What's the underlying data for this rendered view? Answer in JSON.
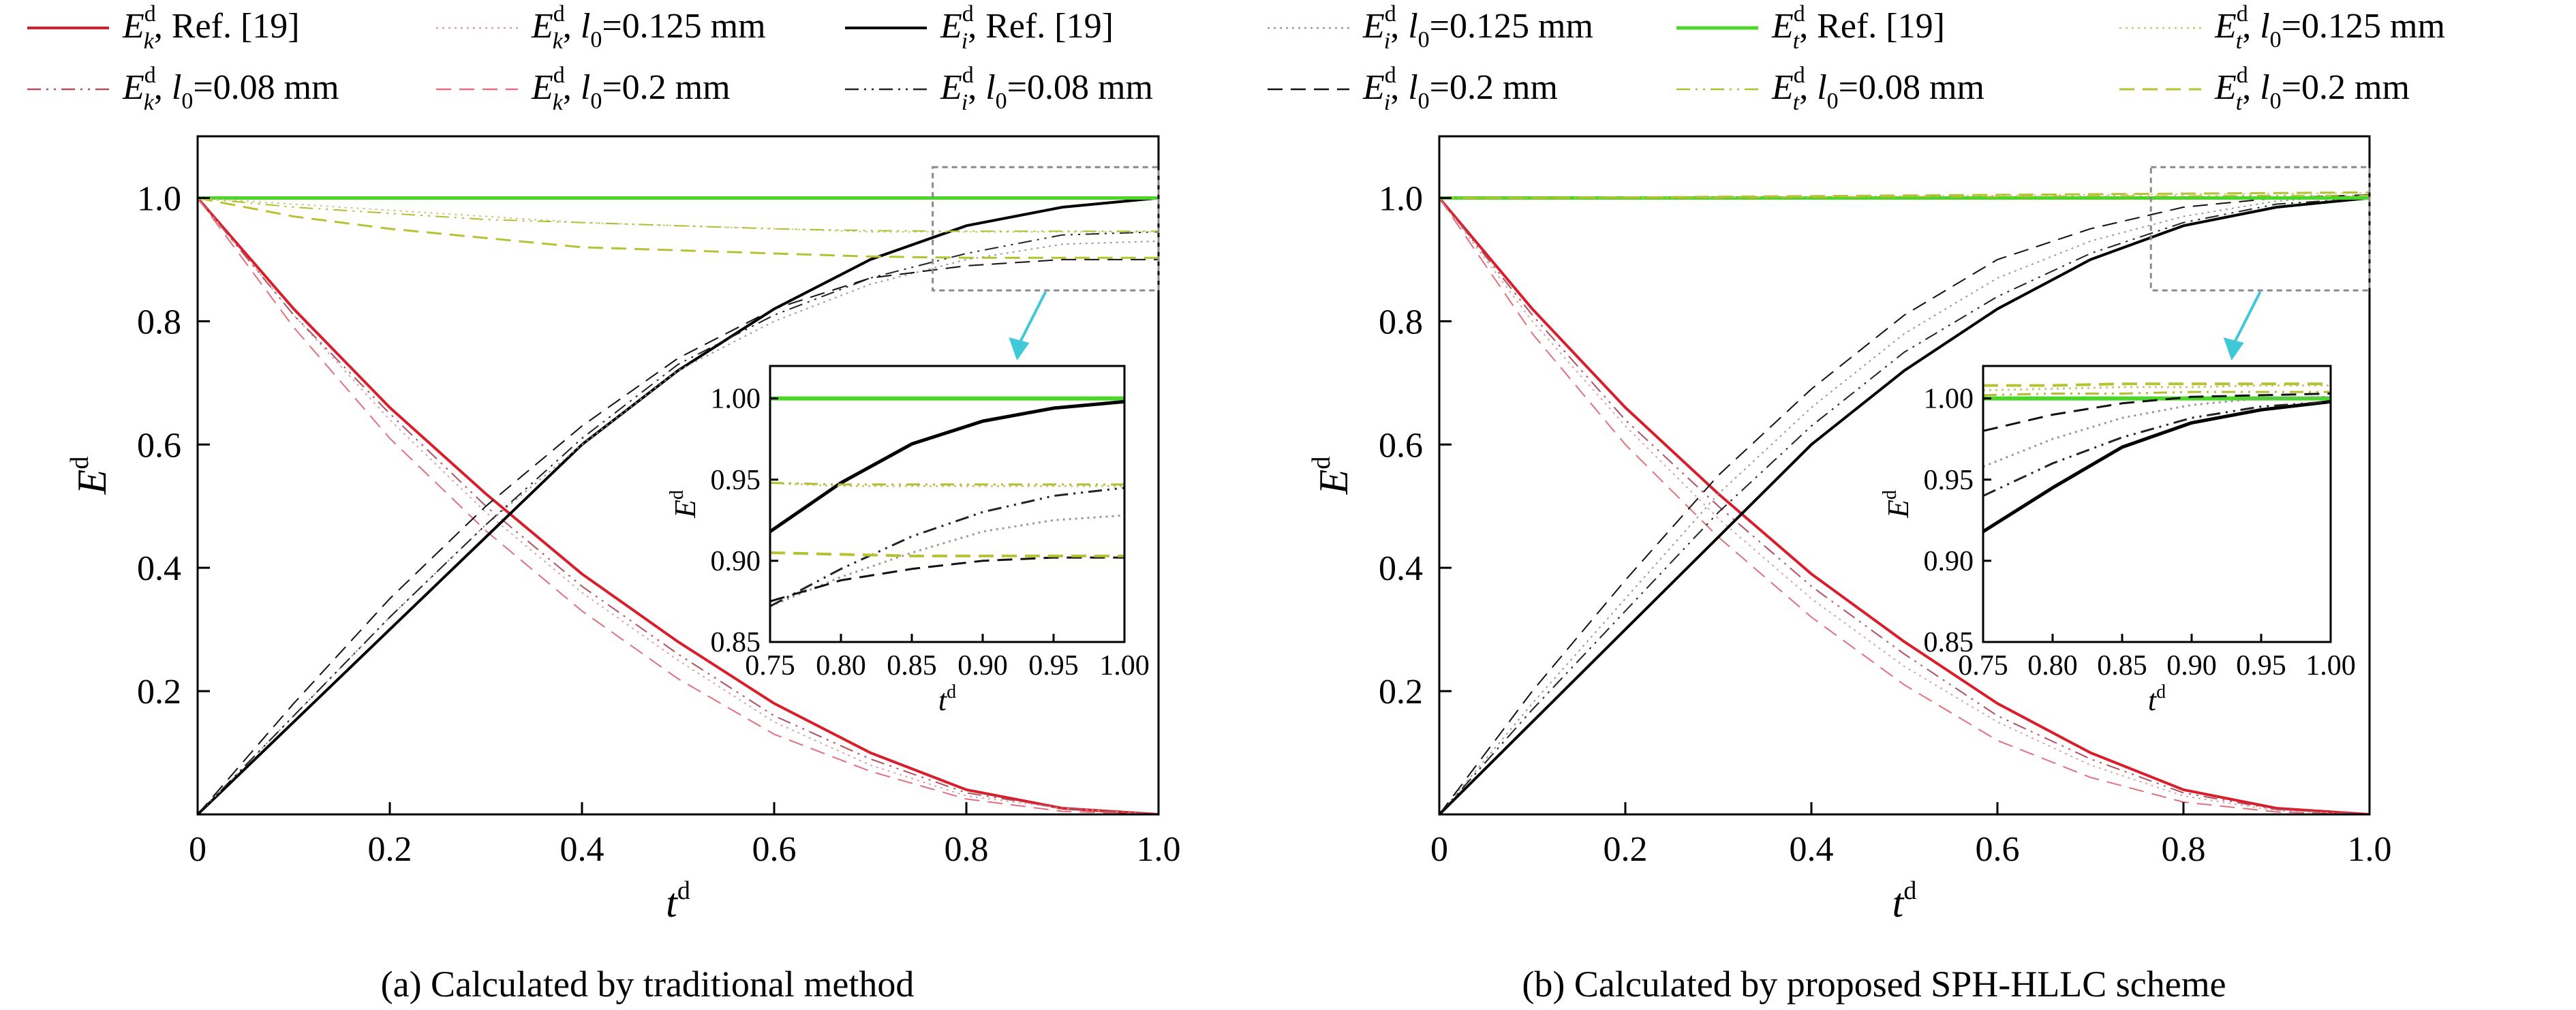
{
  "figure": {
    "captions": [
      "(a) Calculated by traditional method",
      "(b) Calculated by proposed SPH-HLLC scheme"
    ]
  },
  "legend": {
    "placement": "top",
    "entries": [
      {
        "sym": "E",
        "sub": "k",
        "sup": "d",
        "tail": ", Ref. [19]",
        "color": "#d81e2a",
        "dash": "solid",
        "width": 4
      },
      {
        "sym": "E",
        "sub": "k",
        "sup": "d",
        "tail": ", l",
        "tsub": "0",
        "tail2": "=0.125 mm",
        "color": "#d9a0a8",
        "dash": "dot",
        "width": 2
      },
      {
        "sym": "E",
        "sub": "i",
        "sup": "d",
        "tail": ", Ref. [19]",
        "color": "#000000",
        "dash": "solid",
        "width": 4
      },
      {
        "sym": "E",
        "sub": "i",
        "sup": "d",
        "tail": ", l",
        "tsub": "0",
        "tail2": "=0.125 mm",
        "color": "#9a9a9a",
        "dash": "dot",
        "width": 2
      },
      {
        "sym": "E",
        "sub": "t",
        "sup": "d",
        "tail": ", Ref. [19]",
        "color": "#4cd62a",
        "dash": "solid",
        "width": 5
      },
      {
        "sym": "E",
        "sub": "t",
        "sup": "d",
        "tail": ", l",
        "tsub": "0",
        "tail2": "=0.125 mm",
        "color": "#c2ca7a",
        "dash": "dot",
        "width": 2
      },
      {
        "sym": "E",
        "sub": "k",
        "sup": "d",
        "tail": ", l",
        "tsub": "0",
        "tail2": "=0.08 mm",
        "color": "#b0505e",
        "dash": "dashdotdot",
        "width": 2
      },
      {
        "sym": "E",
        "sub": "k",
        "sup": "d",
        "tail": ", l",
        "tsub": "0",
        "tail2": "=0.2 mm",
        "color": "#e0707e",
        "dash": "dash",
        "width": 2
      },
      {
        "sym": "E",
        "sub": "i",
        "sup": "d",
        "tail": ", l",
        "tsub": "0",
        "tail2": "=0.08 mm",
        "color": "#222222",
        "dash": "dashdotdot",
        "width": 2
      },
      {
        "sym": "E",
        "sub": "i",
        "sup": "d",
        "tail": ", l",
        "tsub": "0",
        "tail2": "=0.2 mm",
        "color": "#111111",
        "dash": "dash",
        "width": 2
      },
      {
        "sym": "E",
        "sub": "t",
        "sup": "d",
        "tail": ", l",
        "tsub": "0",
        "tail2": "=0.08 mm",
        "color": "#b3bd2e",
        "dash": "dashdotdot",
        "width": 2
      },
      {
        "sym": "E",
        "sub": "t",
        "sup": "d",
        "tail": ", l",
        "tsub": "0",
        "tail2": "=0.2 mm",
        "color": "#b7c233",
        "dash": "dash",
        "width": 3
      }
    ]
  },
  "chart_data": [
    {
      "type": "line",
      "caption": "(a) Calculated by traditional method",
      "xlabel": "t",
      "xlabel_sup": "d",
      "ylabel": "E",
      "ylabel_sup": "d",
      "xlim": [
        0,
        1.0
      ],
      "ylim": [
        0,
        1.1
      ],
      "xticks": [
        0,
        0.2,
        0.4,
        0.6,
        0.8,
        1.0
      ],
      "xtick_labels": [
        "0",
        "0.2",
        "0.4",
        "0.6",
        "0.8",
        "1.0"
      ],
      "yticks": [
        0.2,
        0.4,
        0.6,
        0.8,
        1.0
      ],
      "ytick_labels": [
        "0.2",
        "0.4",
        "0.6",
        "0.8",
        "1.0"
      ],
      "grid": false,
      "x": [
        0,
        0.1,
        0.2,
        0.3,
        0.4,
        0.5,
        0.6,
        0.7,
        0.8,
        0.9,
        1.0
      ],
      "series": [
        {
          "legend": 0,
          "values": [
            1.0,
            0.82,
            0.66,
            0.52,
            0.39,
            0.28,
            0.18,
            0.1,
            0.04,
            0.01,
            0.0
          ]
        },
        {
          "legend": 1,
          "values": [
            1.0,
            0.81,
            0.64,
            0.49,
            0.36,
            0.25,
            0.15,
            0.08,
            0.03,
            0.01,
            0.0
          ]
        },
        {
          "legend": 6,
          "values": [
            1.0,
            0.81,
            0.65,
            0.5,
            0.37,
            0.26,
            0.16,
            0.09,
            0.035,
            0.01,
            0.0
          ]
        },
        {
          "legend": 7,
          "values": [
            1.0,
            0.79,
            0.61,
            0.46,
            0.33,
            0.22,
            0.13,
            0.07,
            0.025,
            0.005,
            0.0
          ]
        },
        {
          "legend": 2,
          "values": [
            0.0,
            0.15,
            0.3,
            0.45,
            0.6,
            0.72,
            0.82,
            0.9,
            0.955,
            0.985,
            1.0
          ]
        },
        {
          "legend": 3,
          "values": [
            0.0,
            0.16,
            0.32,
            0.47,
            0.6,
            0.72,
            0.8,
            0.86,
            0.9,
            0.925,
            0.93
          ]
        },
        {
          "legend": 8,
          "values": [
            0.0,
            0.16,
            0.32,
            0.47,
            0.61,
            0.73,
            0.81,
            0.87,
            0.91,
            0.94,
            0.945
          ]
        },
        {
          "legend": 9,
          "values": [
            0.0,
            0.18,
            0.35,
            0.5,
            0.63,
            0.74,
            0.82,
            0.87,
            0.89,
            0.9,
            0.9
          ]
        },
        {
          "legend": 4,
          "values": [
            1.0,
            1.0,
            1.0,
            1.0,
            1.0,
            1.0,
            1.0,
            1.0,
            1.0,
            1.0,
            1.0
          ]
        },
        {
          "legend": 5,
          "values": [
            1.0,
            0.99,
            0.98,
            0.97,
            0.96,
            0.955,
            0.95,
            0.945,
            0.945,
            0.945,
            0.945
          ]
        },
        {
          "legend": 10,
          "values": [
            1.0,
            0.985,
            0.975,
            0.965,
            0.96,
            0.955,
            0.95,
            0.947,
            0.946,
            0.946,
            0.946
          ]
        },
        {
          "legend": 11,
          "values": [
            1.0,
            0.97,
            0.95,
            0.935,
            0.92,
            0.915,
            0.91,
            0.905,
            0.903,
            0.903,
            0.903
          ]
        }
      ],
      "inset": {
        "xlabel": "t",
        "xlabel_sup": "d",
        "ylabel": "E",
        "ylabel_sup": "d",
        "xlim": [
          0.75,
          1.0
        ],
        "ylim": [
          0.85,
          1.02
        ],
        "xticks": [
          0.75,
          0.8,
          0.85,
          0.9,
          0.95,
          1.0
        ],
        "xtick_labels": [
          "0.75",
          "0.80",
          "0.85",
          "0.90",
          "0.95",
          "1.00"
        ],
        "yticks": [
          0.85,
          0.9,
          0.95,
          1.0
        ],
        "ytick_labels": [
          "0.85",
          "0.90",
          "0.95",
          "1.00"
        ],
        "x": [
          0.75,
          0.8,
          0.85,
          0.9,
          0.95,
          1.0
        ],
        "series": [
          {
            "legend": 4,
            "values": [
              1.0,
              1.0,
              1.0,
              1.0,
              1.0,
              1.0
            ]
          },
          {
            "legend": 2,
            "values": [
              0.918,
              0.948,
              0.972,
              0.986,
              0.994,
              0.998
            ]
          },
          {
            "legend": 5,
            "values": [
              0.948,
              0.946,
              0.946,
              0.946,
              0.946,
              0.946
            ]
          },
          {
            "legend": 10,
            "values": [
              0.948,
              0.947,
              0.947,
              0.947,
              0.947,
              0.947
            ]
          },
          {
            "legend": 3,
            "values": [
              0.872,
              0.89,
              0.905,
              0.918,
              0.925,
              0.928
            ]
          },
          {
            "legend": 8,
            "values": [
              0.872,
              0.895,
              0.915,
              0.93,
              0.94,
              0.945
            ]
          },
          {
            "legend": 9,
            "values": [
              0.875,
              0.888,
              0.895,
              0.9,
              0.902,
              0.902
            ]
          },
          {
            "legend": 11,
            "values": [
              0.905,
              0.904,
              0.903,
              0.903,
              0.903,
              0.903
            ]
          }
        ]
      }
    },
    {
      "type": "line",
      "caption": "(b) Calculated by proposed SPH-HLLC scheme",
      "xlabel": "t",
      "xlabel_sup": "d",
      "ylabel": "E",
      "ylabel_sup": "d",
      "xlim": [
        0,
        1.0
      ],
      "ylim": [
        0,
        1.1
      ],
      "xticks": [
        0,
        0.2,
        0.4,
        0.6,
        0.8,
        1.0
      ],
      "xtick_labels": [
        "0",
        "0.2",
        "0.4",
        "0.6",
        "0.8",
        "1.0"
      ],
      "yticks": [
        0.2,
        0.4,
        0.6,
        0.8,
        1.0
      ],
      "ytick_labels": [
        "0.2",
        "0.4",
        "0.6",
        "0.8",
        "1.0"
      ],
      "grid": false,
      "x": [
        0,
        0.1,
        0.2,
        0.3,
        0.4,
        0.5,
        0.6,
        0.7,
        0.8,
        0.9,
        1.0
      ],
      "series": [
        {
          "legend": 0,
          "values": [
            1.0,
            0.82,
            0.66,
            0.52,
            0.39,
            0.28,
            0.18,
            0.1,
            0.04,
            0.01,
            0.0
          ]
        },
        {
          "legend": 1,
          "values": [
            1.0,
            0.8,
            0.63,
            0.48,
            0.35,
            0.24,
            0.15,
            0.08,
            0.03,
            0.006,
            0.0
          ]
        },
        {
          "legend": 6,
          "values": [
            1.0,
            0.81,
            0.64,
            0.5,
            0.37,
            0.26,
            0.16,
            0.09,
            0.035,
            0.008,
            0.0
          ]
        },
        {
          "legend": 7,
          "values": [
            1.0,
            0.78,
            0.6,
            0.45,
            0.32,
            0.21,
            0.12,
            0.06,
            0.02,
            0.004,
            0.0
          ]
        },
        {
          "legend": 2,
          "values": [
            0.0,
            0.15,
            0.3,
            0.45,
            0.6,
            0.72,
            0.82,
            0.9,
            0.955,
            0.985,
            1.0
          ]
        },
        {
          "legend": 3,
          "values": [
            0.0,
            0.18,
            0.35,
            0.52,
            0.66,
            0.78,
            0.87,
            0.93,
            0.97,
            0.995,
            1.005
          ]
        },
        {
          "legend": 8,
          "values": [
            0.0,
            0.17,
            0.33,
            0.49,
            0.63,
            0.75,
            0.84,
            0.91,
            0.96,
            0.99,
            1.0
          ]
        },
        {
          "legend": 9,
          "values": [
            0.0,
            0.2,
            0.38,
            0.55,
            0.69,
            0.81,
            0.9,
            0.95,
            0.985,
            1.0,
            1.005
          ]
        },
        {
          "legend": 4,
          "values": [
            1.0,
            1.0,
            1.0,
            1.0,
            1.0,
            1.0,
            1.0,
            1.0,
            1.0,
            1.0,
            1.0
          ]
        },
        {
          "legend": 5,
          "values": [
            1.0,
            1.0,
            1.0,
            1.001,
            1.002,
            1.003,
            1.004,
            1.005,
            1.006,
            1.007,
            1.008
          ]
        },
        {
          "legend": 10,
          "values": [
            1.0,
            1.0,
            1.0,
            1.0,
            1.001,
            1.002,
            1.002,
            1.003,
            1.003,
            1.004,
            1.004
          ]
        },
        {
          "legend": 11,
          "values": [
            1.0,
            1.0,
            1.001,
            1.002,
            1.003,
            1.004,
            1.005,
            1.006,
            1.007,
            1.008,
            1.009
          ]
        }
      ],
      "inset": {
        "xlabel": "t",
        "xlabel_sup": "d",
        "ylabel": "E",
        "ylabel_sup": "d",
        "xlim": [
          0.75,
          1.0
        ],
        "ylim": [
          0.85,
          1.02
        ],
        "xticks": [
          0.75,
          0.8,
          0.85,
          0.9,
          0.95,
          1.0
        ],
        "xtick_labels": [
          "0.75",
          "0.80",
          "0.85",
          "0.90",
          "0.95",
          "1.00"
        ],
        "yticks": [
          0.85,
          0.9,
          0.95,
          1.0
        ],
        "ytick_labels": [
          "0.85",
          "0.90",
          "0.95",
          "1.00"
        ],
        "x": [
          0.75,
          0.8,
          0.85,
          0.9,
          0.95,
          1.0
        ],
        "series": [
          {
            "legend": 4,
            "values": [
              1.0,
              1.0,
              1.0,
              1.0,
              1.0,
              1.0
            ]
          },
          {
            "legend": 5,
            "values": [
              1.005,
              1.006,
              1.007,
              1.007,
              1.008,
              1.008
            ]
          },
          {
            "legend": 10,
            "values": [
              1.002,
              1.003,
              1.003,
              1.004,
              1.004,
              1.004
            ]
          },
          {
            "legend": 11,
            "values": [
              1.008,
              1.008,
              1.009,
              1.009,
              1.009,
              1.009
            ]
          },
          {
            "legend": 2,
            "values": [
              0.918,
              0.945,
              0.97,
              0.985,
              0.993,
              0.998
            ]
          },
          {
            "legend": 3,
            "values": [
              0.958,
              0.975,
              0.988,
              0.996,
              1.0,
              1.001
            ]
          },
          {
            "legend": 8,
            "values": [
              0.94,
              0.96,
              0.976,
              0.988,
              0.995,
              0.998
            ]
          },
          {
            "legend": 9,
            "values": [
              0.98,
              0.99,
              0.997,
              1.001,
              1.002,
              1.003
            ]
          }
        ]
      }
    }
  ]
}
